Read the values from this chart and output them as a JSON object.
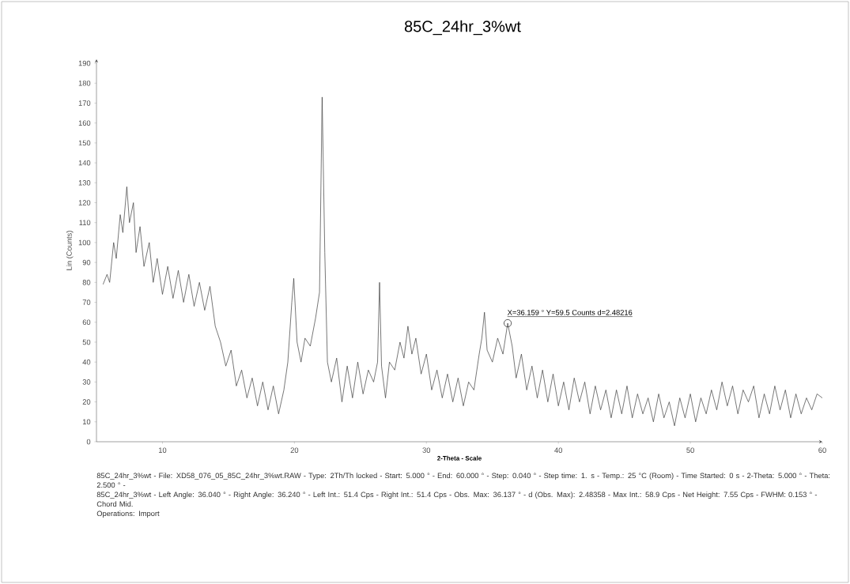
{
  "chart_data": {
    "type": "line",
    "title": "85C_24hr_3%wt",
    "xlabel": "2-Theta - Scale",
    "ylabel": "Lin (Counts)",
    "xlim": [
      5,
      60
    ],
    "xticks": [
      10,
      20,
      30,
      40,
      50,
      60
    ],
    "ylim": [
      0,
      192
    ],
    "yticks": [
      0,
      10,
      20,
      30,
      40,
      50,
      60,
      70,
      80,
      90,
      100,
      110,
      120,
      130,
      140,
      150,
      160,
      170,
      180,
      190
    ],
    "grid": false,
    "marker": "none",
    "line_style": "solid",
    "series": [
      {
        "color": "#333333",
        "x": [
          5.5,
          5.8,
          6.0,
          6.3,
          6.5,
          6.8,
          7.0,
          7.3,
          7.5,
          7.8,
          8.0,
          8.3,
          8.6,
          9.0,
          9.3,
          9.6,
          10.0,
          10.4,
          10.8,
          11.2,
          11.6,
          12.0,
          12.4,
          12.8,
          13.2,
          13.6,
          14.0,
          14.4,
          14.8,
          15.2,
          15.6,
          16.0,
          16.4,
          16.8,
          17.2,
          17.6,
          18.0,
          18.4,
          18.8,
          19.2,
          19.5,
          19.8,
          19.95,
          20.2,
          20.5,
          20.8,
          21.2,
          21.6,
          21.9,
          22.1,
          22.3,
          22.5,
          22.8,
          23.2,
          23.6,
          24.0,
          24.4,
          24.8,
          25.2,
          25.6,
          26.0,
          26.3,
          26.45,
          26.6,
          26.9,
          27.2,
          27.6,
          28.0,
          28.3,
          28.6,
          28.9,
          29.2,
          29.6,
          30.0,
          30.4,
          30.8,
          31.2,
          31.6,
          32.0,
          32.4,
          32.8,
          33.2,
          33.6,
          34.0,
          34.2,
          34.4,
          34.6,
          35.0,
          35.4,
          35.8,
          36.16,
          36.5,
          36.8,
          37.2,
          37.6,
          38.0,
          38.4,
          38.8,
          39.2,
          39.6,
          40.0,
          40.4,
          40.8,
          41.2,
          41.6,
          42.0,
          42.4,
          42.8,
          43.2,
          43.6,
          44.0,
          44.4,
          44.8,
          45.2,
          45.6,
          46.0,
          46.4,
          46.8,
          47.2,
          47.6,
          48.0,
          48.4,
          48.8,
          49.2,
          49.6,
          50.0,
          50.4,
          50.8,
          51.2,
          51.6,
          52.0,
          52.4,
          52.8,
          53.2,
          53.6,
          54.0,
          54.4,
          54.8,
          55.2,
          55.6,
          56.0,
          56.4,
          56.8,
          57.2,
          57.6,
          58.0,
          58.4,
          58.8,
          59.2,
          59.6,
          60.0
        ],
        "values": [
          79,
          84,
          80,
          100,
          92,
          114,
          105,
          128,
          110,
          120,
          95,
          108,
          88,
          100,
          80,
          92,
          74,
          88,
          72,
          86,
          70,
          84,
          68,
          80,
          66,
          78,
          58,
          50,
          38,
          46,
          28,
          36,
          22,
          32,
          18,
          30,
          16,
          28,
          14,
          26,
          40,
          70,
          82,
          50,
          40,
          52,
          48,
          62,
          75,
          173,
          95,
          40,
          30,
          42,
          20,
          38,
          22,
          40,
          24,
          36,
          30,
          40,
          80,
          38,
          22,
          40,
          36,
          50,
          42,
          58,
          44,
          52,
          34,
          44,
          26,
          36,
          22,
          34,
          20,
          32,
          18,
          30,
          26,
          44,
          52,
          65,
          46,
          40,
          52,
          44,
          59.5,
          48,
          32,
          44,
          26,
          38,
          22,
          36,
          20,
          34,
          18,
          30,
          16,
          32,
          20,
          30,
          14,
          28,
          16,
          26,
          12,
          26,
          14,
          28,
          12,
          24,
          14,
          22,
          10,
          24,
          12,
          20,
          8,
          22,
          12,
          24,
          10,
          22,
          14,
          26,
          16,
          30,
          18,
          28,
          14,
          26,
          20,
          28,
          12,
          24,
          14,
          28,
          16,
          26,
          12,
          24,
          14,
          22,
          16,
          24,
          22
        ]
      }
    ],
    "annotations": [
      {
        "text": "X=36.159 ° Y=59.5 Counts d=2.48216",
        "x": 36.159,
        "y": 59.5
      },
      "85C_24hr_3%wt - File: XD58_076_05_85C_24hr_3%wt.RAW - Type: 2Th/Th locked - Start: 5.000 ° - End: 60.000 ° - Step: 0.040 ° - Step time: 1. s - Temp.: 25 °C (Room) - Time Started: 0 s - 2-Theta: 5.000 ° - Theta: 2.500 ° -",
      "85C_24hr_3%wt - Left Angle: 36.040 ° - Right Angle: 36.240 ° - Left Int.: 51.4 Cps - Right Int.: 51.4 Cps - Obs. Max: 36.137 ° - d (Obs. Max): 2.48358 - Max Int.: 58.9 Cps - Net Height: 7.55 Cps - FWHM: 0.153 ° - Chord Mid.",
      "Operations: Import"
    ]
  }
}
